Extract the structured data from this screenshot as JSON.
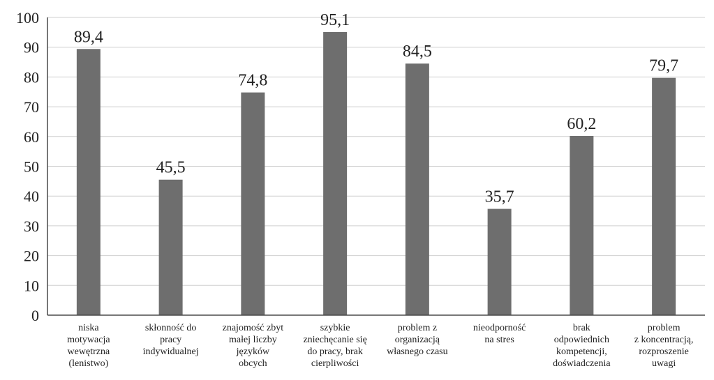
{
  "chart_data": {
    "type": "bar",
    "categories": [
      [
        "niska",
        "motywacja",
        "wewętrzna",
        "(lenistwo)"
      ],
      [
        "skłonność do",
        "pracy",
        "indywidualnej"
      ],
      [
        "znajomość zbyt",
        "małej liczby",
        "języków",
        "obcych"
      ],
      [
        "szybkie",
        "zniechęcanie się",
        "do pracy, brak",
        "cierpliwości"
      ],
      [
        "problem z",
        "organizacją",
        "własnego czasu"
      ],
      [
        "nieodporność",
        "na stres"
      ],
      [
        "brak",
        "odpowiednich",
        "kompetencji,",
        "doświadczenia"
      ],
      [
        "problem",
        "z koncentracją,",
        "rozproszenie",
        "uwagi"
      ]
    ],
    "values": [
      89.4,
      45.5,
      74.8,
      95.1,
      84.5,
      35.7,
      60.2,
      79.7
    ],
    "data_labels": [
      "89,4",
      "45,5",
      "74,8",
      "95,1",
      "84,5",
      "35,7",
      "60,2",
      "79,7"
    ],
    "yticks": [
      "0",
      "10",
      "20",
      "30",
      "40",
      "50",
      "60",
      "70",
      "80",
      "90",
      "100"
    ],
    "ylim": [
      0,
      100
    ],
    "grid": true,
    "colors": {
      "bar": "#6e6e6e",
      "grid": "#cfcfcf",
      "axis": "#4a4a4a",
      "text": "#222222"
    }
  }
}
